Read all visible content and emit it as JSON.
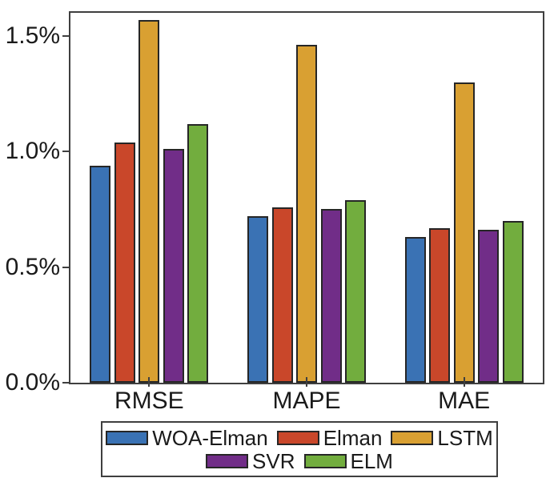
{
  "figure": {
    "background": "#ffffff",
    "spine_color": "#3f3f3f",
    "bar_edge_color": "#262626",
    "text_color": "#1a1a1a"
  },
  "chart_data": {
    "type": "bar",
    "title": "",
    "xlabel": "",
    "ylabel": "",
    "categories": [
      "RMSE",
      "MAPE",
      "MAE"
    ],
    "series": [
      {
        "name": "WOA-Elman",
        "color": "#3a72b4",
        "values": [
          0.94,
          0.72,
          0.63
        ]
      },
      {
        "name": "Elman",
        "color": "#c9472a",
        "values": [
          1.04,
          0.76,
          0.67
        ]
      },
      {
        "name": "LSTM",
        "color": "#d9a032",
        "values": [
          1.57,
          1.46,
          1.3
        ]
      },
      {
        "name": "SVR",
        "color": "#712d88",
        "values": [
          1.01,
          0.75,
          0.66
        ]
      },
      {
        "name": "ELM",
        "color": "#72ad3e",
        "values": [
          1.12,
          0.79,
          0.7
        ]
      }
    ],
    "values_unit": "%",
    "ylim": [
      0,
      1.6
    ],
    "yticks": [
      {
        "value": 0.0,
        "label": "0.0%"
      },
      {
        "value": 0.5,
        "label": "0.5%"
      },
      {
        "value": 1.0,
        "label": "1.0%"
      },
      {
        "value": 1.5,
        "label": "1.5%"
      }
    ],
    "grid": false,
    "legend_position": "bottom",
    "legend_rows": [
      [
        0,
        1,
        2
      ],
      [
        3,
        4
      ]
    ]
  }
}
